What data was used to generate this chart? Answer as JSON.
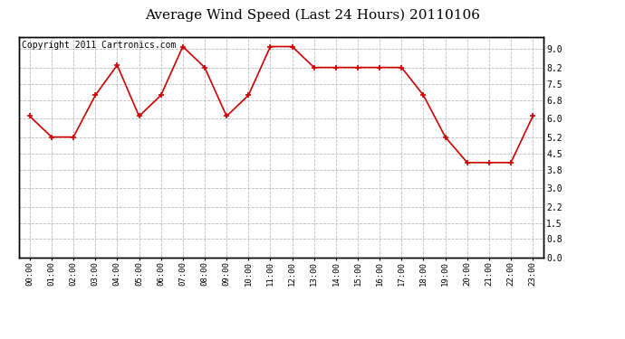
{
  "title": "Average Wind Speed (Last 24 Hours) 20110106",
  "copyright_text": "Copyright 2011 Cartronics.com",
  "hours": [
    "00:00",
    "01:00",
    "02:00",
    "03:00",
    "04:00",
    "05:00",
    "06:00",
    "07:00",
    "08:00",
    "09:00",
    "10:00",
    "11:00",
    "12:00",
    "13:00",
    "14:00",
    "15:00",
    "16:00",
    "17:00",
    "18:00",
    "19:00",
    "20:00",
    "21:00",
    "22:00",
    "23:00"
  ],
  "values": [
    6.1,
    5.2,
    5.2,
    7.0,
    8.3,
    6.1,
    7.0,
    9.1,
    8.2,
    6.1,
    7.0,
    9.1,
    9.1,
    8.2,
    8.2,
    8.2,
    8.2,
    8.2,
    7.0,
    5.2,
    4.1,
    4.1,
    4.1,
    6.1
  ],
  "line_color": "#cc0000",
  "marker_color": "#cc0000",
  "background_color": "#ffffff",
  "grid_color": "#bbbbbb",
  "ylim": [
    0.0,
    9.5
  ],
  "yticks": [
    0.0,
    0.8,
    1.5,
    2.2,
    3.0,
    3.8,
    4.5,
    5.2,
    6.0,
    6.8,
    7.5,
    8.2,
    9.0
  ],
  "ytick_labels": [
    "0.0",
    "0.8",
    "1.5",
    "2.2",
    "3.0",
    "3.8",
    "4.5",
    "5.2",
    "6.0",
    "6.8",
    "7.5",
    "8.2",
    "9.0"
  ],
  "title_fontsize": 11,
  "copyright_fontsize": 7
}
